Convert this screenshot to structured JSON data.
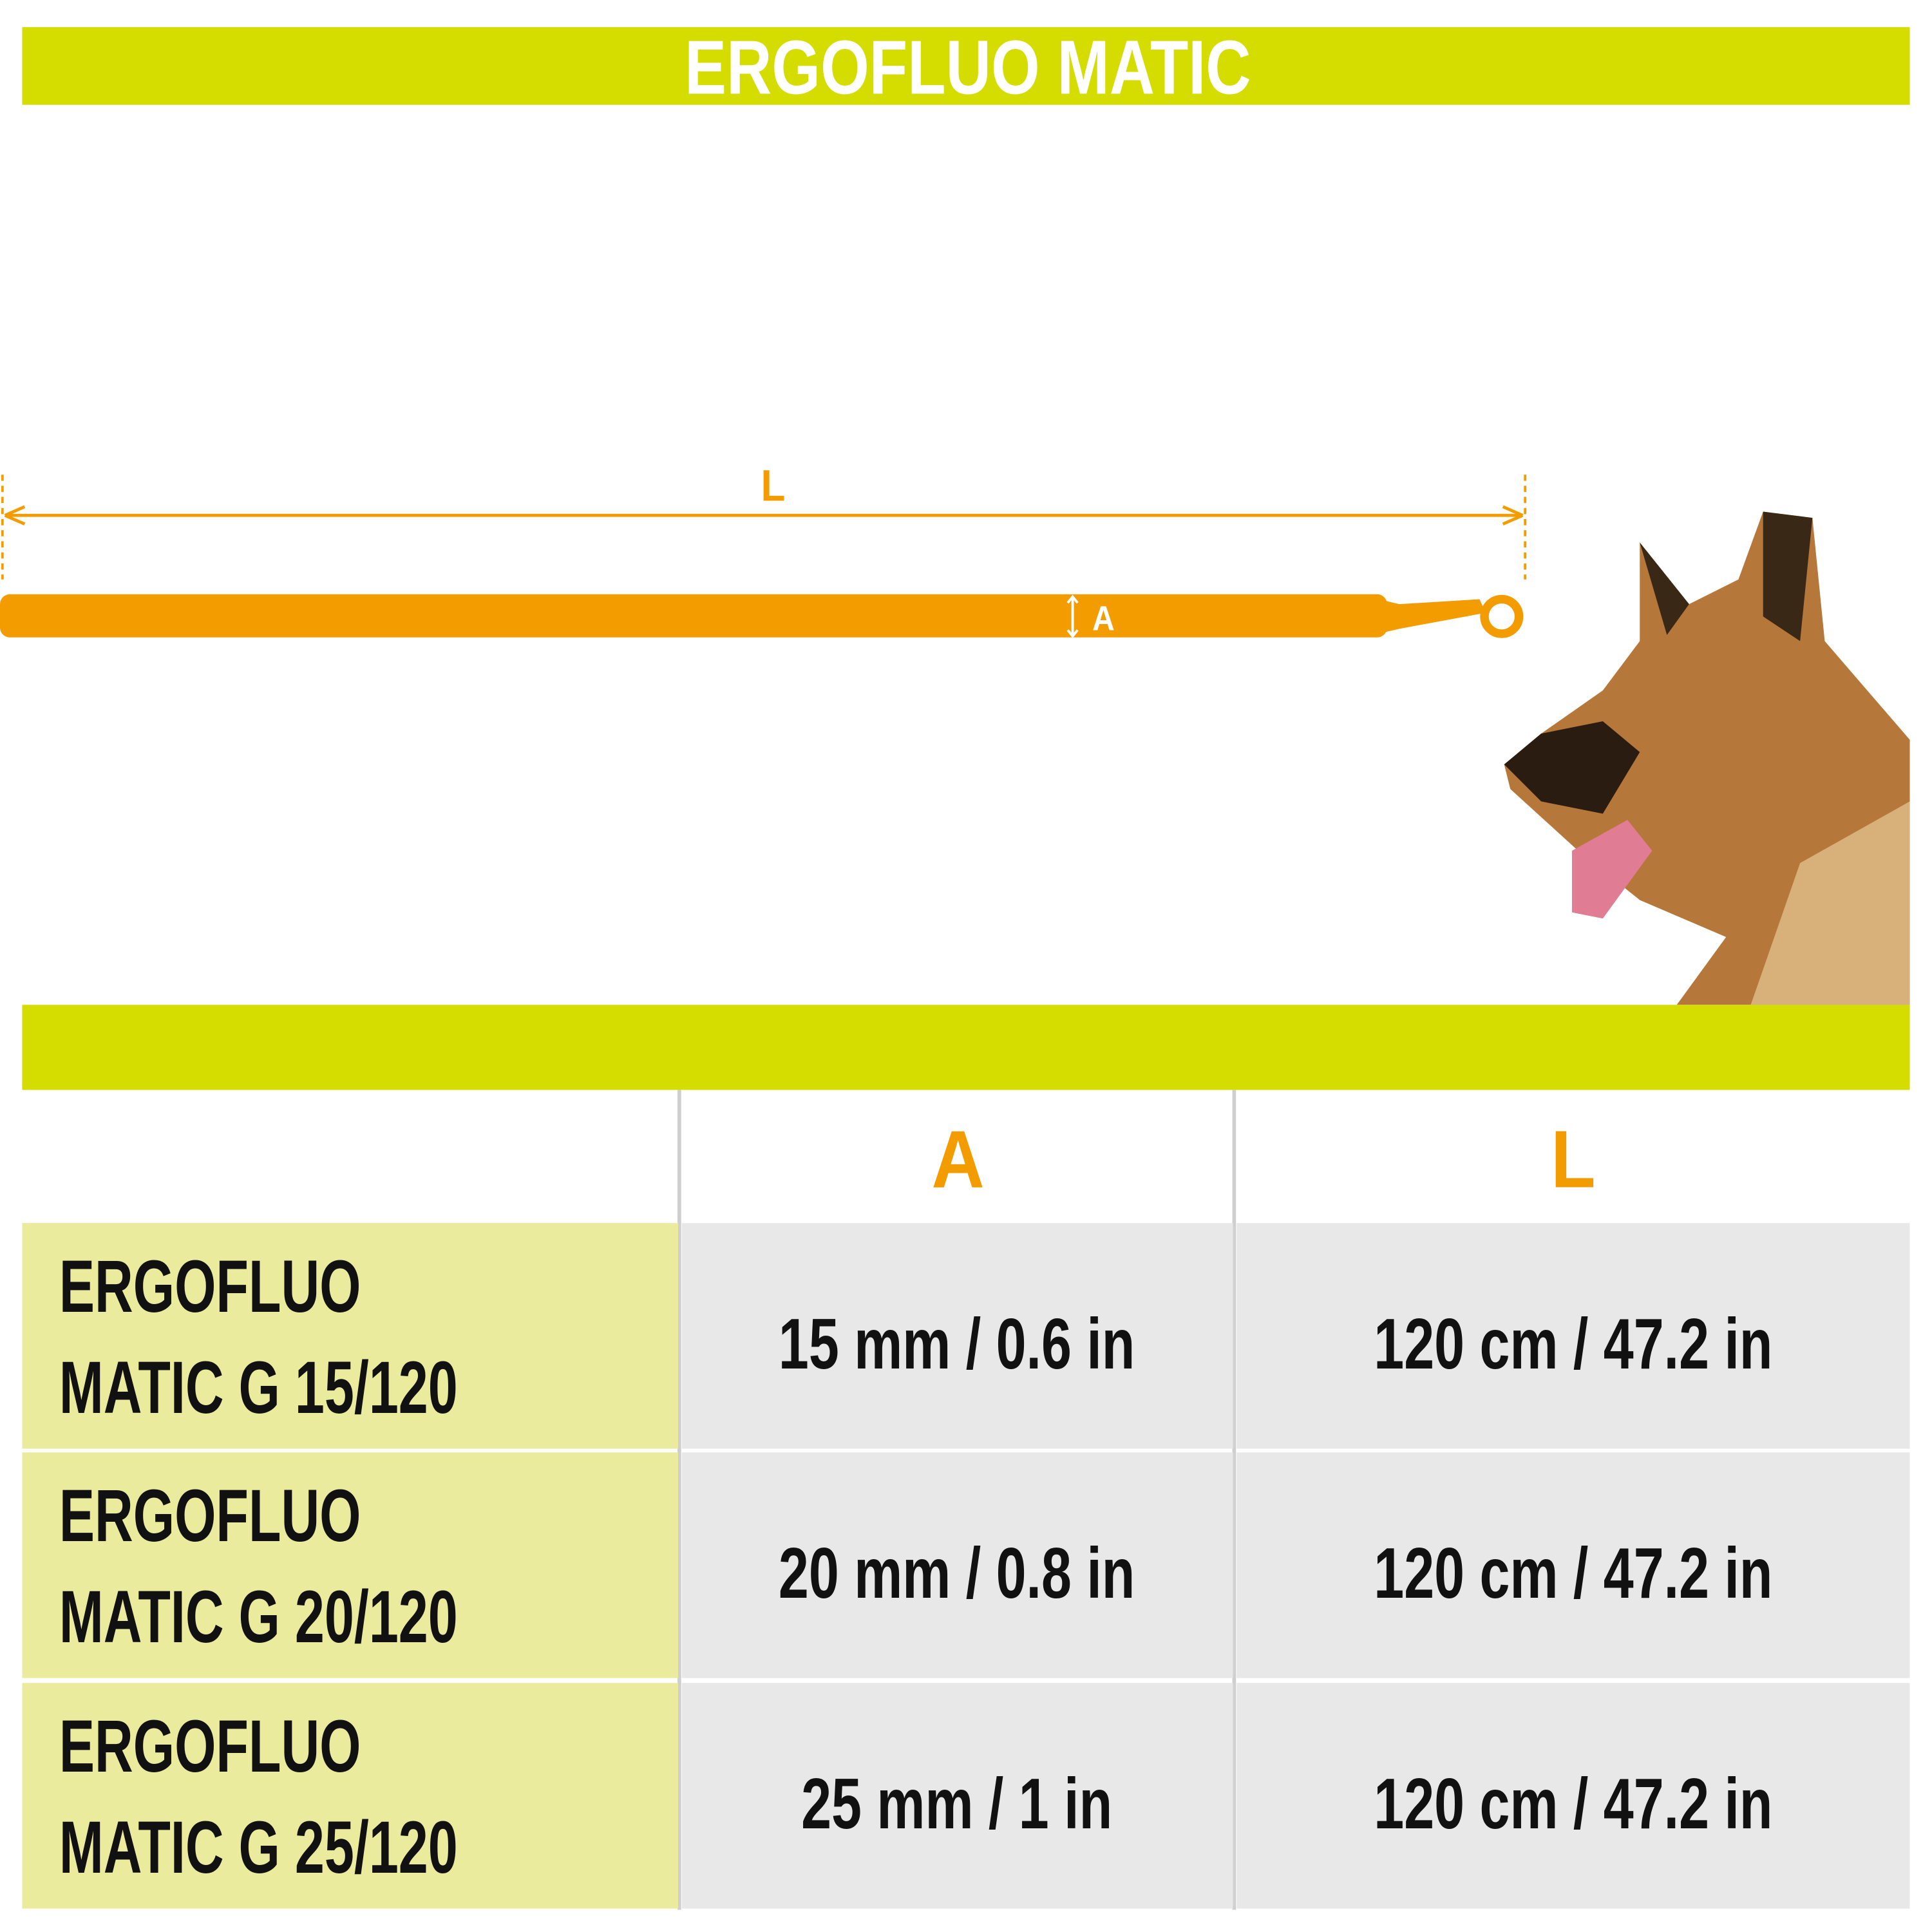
{
  "header": {
    "title": "ERGOFLUO MATIC"
  },
  "diagram": {
    "length_label": "L",
    "width_label": "A"
  },
  "table": {
    "columns": [
      "A",
      "L"
    ],
    "rows": [
      {
        "name": [
          "ERGOFLUO",
          "MATIC G 15/120"
        ],
        "a": "15 mm / 0.6 in",
        "l": "120 cm / 47.2 in"
      },
      {
        "name": [
          "ERGOFLUO",
          "MATIC G 20/120"
        ],
        "a": "20 mm / 0.8 in",
        "l": "120 cm / 47.2 in"
      },
      {
        "name": [
          "ERGOFLUO",
          "MATIC G 25/120"
        ],
        "a": "25 mm / 1 in",
        "l": "120 cm / 47.2 in"
      }
    ]
  }
}
